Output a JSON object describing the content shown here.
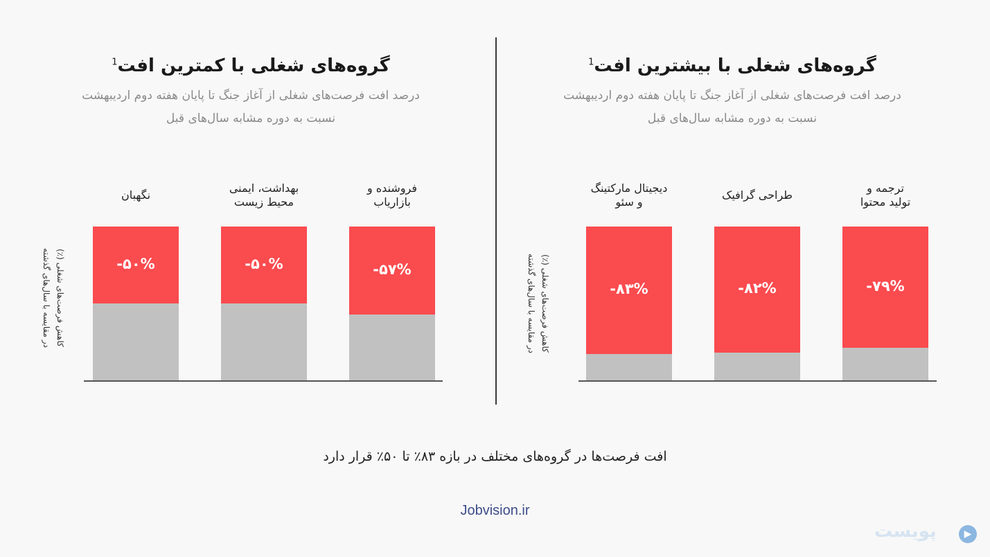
{
  "panels": [
    {
      "id": "most-drop",
      "title": "گروه‌های شغلی با بیشترین افت",
      "title_sup": "1",
      "subtitle_line1": "درصد افت فرصت‌های شغلی از آغاز جنگ تا پایان هفته دوم اردیبهشت",
      "subtitle_line2": "نسبت به دوره مشابه سال‌های قبل",
      "ylabel_line1": "کاهش فرصت‌های شغلی (٪)",
      "ylabel_line2": "در مقایسه با سال‌های گذشته"
    },
    {
      "id": "least-drop",
      "title": "گروه‌های شغلی با کمترین افت",
      "title_sup": "1",
      "subtitle_line1": "درصد افت فرصت‌های شغلی از آغاز جنگ تا پایان هفته دوم اردیبهشت",
      "subtitle_line2": "نسبت به دوره مشابه سال‌های قبل",
      "ylabel_line1": "کاهش فرصت‌های شغلی (٪)",
      "ylabel_line2": "در مقایسه با سال‌های گذشته"
    }
  ],
  "chart_data": [
    {
      "type": "bar",
      "title": "گروه‌های شغلی با بیشترین افت",
      "subtitle": "درصد افت فرصت‌های شغلی از آغاز جنگ تا پایان هفته دوم اردیبهشت نسبت به دوره مشابه سال‌های قبل",
      "ylabel": "کاهش فرصت‌های شغلی (٪) در مقایسه با سال‌های گذشته",
      "categories": [
        "ترجمه و تولید محتوا",
        "طراحی گرافیک",
        "دیجیتال مارکتینگ و سئو"
      ],
      "category_lines": [
        [
          "ترجمه و",
          "تولید محتوا"
        ],
        [
          "طراحی گرافیک"
        ],
        [
          "دیجیتال مارکتینگ",
          "و سئو"
        ]
      ],
      "values": [
        -79,
        -82,
        -83
      ],
      "value_labels": [
        "-۷۹%",
        "-۸۲%",
        "-۸۳%"
      ],
      "ylim": [
        0,
        100
      ],
      "colors": {
        "drop": "#fa4b4f",
        "remaining": "#c1c1c1"
      }
    },
    {
      "type": "bar",
      "title": "گروه‌های شغلی با کمترین افت",
      "subtitle": "درصد افت فرصت‌های شغلی از آغاز جنگ تا پایان هفته دوم اردیبهشت نسبت به دوره مشابه سال‌های قبل",
      "ylabel": "کاهش فرصت‌های شغلی (٪) در مقایسه با سال‌های گذشته",
      "categories": [
        "فروشنده و بازاریاب",
        "بهداشت، ایمنی محیط زیست",
        "نگهبان"
      ],
      "category_lines": [
        [
          "فروشنده و",
          "بازاریاب"
        ],
        [
          "بهداشت، ایمنی",
          "محیط زیست"
        ],
        [
          "نگهبان"
        ]
      ],
      "values": [
        -57,
        -50,
        -50
      ],
      "value_labels": [
        "-۵۷%",
        "-۵۰%",
        "-۵۰%"
      ],
      "ylim": [
        0,
        100
      ],
      "colors": {
        "drop": "#fa4b4f",
        "remaining": "#c1c1c1"
      }
    }
  ],
  "summary": "افت فرصت‌ها در گروه‌های مختلف در بازه ۸۳٪ تا ۵۰٪ قرار دارد",
  "source": "Jobvision.ir",
  "logo": {
    "text": "پویست",
    "icon": "play-circle-icon"
  }
}
